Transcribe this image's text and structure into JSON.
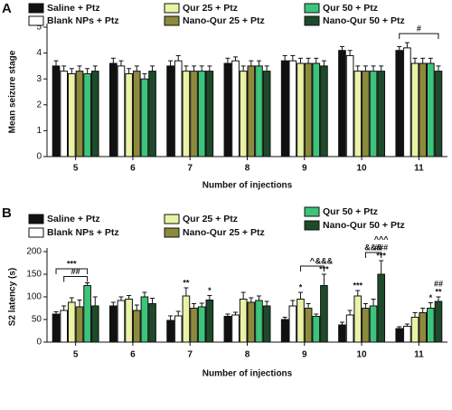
{
  "chart_data": [
    {
      "type": "bar",
      "panel_label": "A",
      "y_label": "Mean seizure stage",
      "x_label": "Number of injections",
      "categories": [
        "5",
        "6",
        "7",
        "8",
        "9",
        "10",
        "11"
      ],
      "ylim": [
        0,
        5
      ],
      "yticks": [
        0,
        1,
        2,
        3,
        4,
        5
      ],
      "series": [
        {
          "name": "Saline + Ptz",
          "color": "#111111",
          "values": [
            3.5,
            3.6,
            3.5,
            3.6,
            3.7,
            4.1,
            4.1
          ],
          "errors": [
            0.2,
            0.2,
            0.2,
            0.2,
            0.2,
            0.15,
            0.15
          ]
        },
        {
          "name": "Blank NPs + Ptz",
          "color": "#ffffff",
          "values": [
            3.3,
            3.5,
            3.7,
            3.7,
            3.7,
            3.9,
            4.2
          ],
          "errors": [
            0.2,
            0.2,
            0.2,
            0.15,
            0.2,
            0.2,
            0.2
          ]
        },
        {
          "name": "Qur 25 + Ptz",
          "color": "#eaf2a6",
          "values": [
            3.2,
            3.2,
            3.3,
            3.3,
            3.6,
            3.3,
            3.6
          ],
          "errors": [
            0.2,
            0.2,
            0.2,
            0.2,
            0.2,
            0.2,
            0.2
          ]
        },
        {
          "name": "Nano-Qur 25 + Ptz",
          "color": "#8c8a3c",
          "values": [
            3.3,
            3.3,
            3.3,
            3.5,
            3.6,
            3.3,
            3.6
          ],
          "errors": [
            0.2,
            0.2,
            0.2,
            0.2,
            0.2,
            0.2,
            0.2
          ]
        },
        {
          "name": "Qur 50 + Ptz",
          "color": "#3cc47a",
          "values": [
            3.2,
            3.0,
            3.3,
            3.5,
            3.6,
            3.3,
            3.6
          ],
          "errors": [
            0.2,
            0.2,
            0.2,
            0.2,
            0.2,
            0.2,
            0.2
          ]
        },
        {
          "name": "Nano-Qur 50 + Ptz",
          "color": "#1d4a2a",
          "values": [
            3.3,
            3.3,
            3.3,
            3.3,
            3.5,
            3.3,
            3.3
          ],
          "errors": [
            0.2,
            0.2,
            0.2,
            0.2,
            0.2,
            0.2,
            0.2
          ]
        }
      ],
      "annotations": [
        "#"
      ]
    },
    {
      "type": "bar",
      "panel_label": "B",
      "y_label": "S2 latency (s)",
      "x_label": "Number of injections",
      "categories": [
        "5",
        "6",
        "7",
        "8",
        "9",
        "10",
        "11"
      ],
      "ylim": [
        0,
        200
      ],
      "yticks": [
        0,
        50,
        100,
        150,
        200
      ],
      "series": [
        {
          "name": "Saline + Ptz",
          "color": "#111111",
          "values": [
            62,
            80,
            48,
            57,
            50,
            38,
            30
          ],
          "errors": [
            5,
            8,
            10,
            5,
            5,
            6,
            4
          ]
        },
        {
          "name": "Blank NPs + Ptz",
          "color": "#ffffff",
          "values": [
            70,
            92,
            58,
            60,
            80,
            60,
            35
          ],
          "errors": [
            10,
            8,
            10,
            6,
            12,
            10,
            5
          ]
        },
        {
          "name": "Qur 25 + Ptz",
          "color": "#eaf2a6",
          "values": [
            88,
            95,
            102,
            95,
            95,
            102,
            55
          ],
          "errors": [
            10,
            8,
            18,
            15,
            15,
            12,
            10
          ]
        },
        {
          "name": "Nano-Qur 25 + Ptz",
          "color": "#8c8a3c",
          "values": [
            78,
            70,
            75,
            88,
            75,
            75,
            65
          ],
          "errors": [
            15,
            12,
            10,
            10,
            10,
            10,
            10
          ]
        },
        {
          "name": "Qur 50 + Ptz",
          "color": "#3cc47a",
          "values": [
            125,
            100,
            78,
            92,
            57,
            80,
            75
          ],
          "errors": [
            6,
            10,
            8,
            10,
            5,
            15,
            12
          ]
        },
        {
          "name": "Nano-Qur 50 + Ptz",
          "color": "#1d4a2a",
          "values": [
            80,
            85,
            93,
            80,
            125,
            150,
            90
          ],
          "errors": [
            20,
            12,
            10,
            10,
            25,
            30,
            10
          ]
        }
      ],
      "annotations": [
        "***",
        "##",
        "**",
        "*",
        "*",
        "^",
        "&&&",
        "***",
        "***",
        "&&&",
        "^^^",
        "###",
        "***",
        "*",
        "##",
        "**"
      ]
    }
  ]
}
